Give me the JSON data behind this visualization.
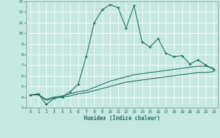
{
  "xlabel": "Humidex (Indice chaleur)",
  "bg_color": "#c5e8e0",
  "line_color": "#1a6e5e",
  "xlim": [
    -0.5,
    23.5
  ],
  "ylim": [
    3,
    13
  ],
  "xticks": [
    0,
    1,
    2,
    3,
    4,
    5,
    6,
    7,
    8,
    9,
    10,
    11,
    12,
    13,
    14,
    15,
    16,
    17,
    18,
    19,
    20,
    21,
    22,
    23
  ],
  "yticks": [
    3,
    4,
    5,
    6,
    7,
    8,
    9,
    10,
    11,
    12,
    13
  ],
  "line1_x": [
    0,
    1,
    2,
    3,
    4,
    5,
    6,
    7,
    8,
    9,
    10,
    11,
    12,
    13,
    14,
    15,
    16,
    17,
    18,
    19,
    20,
    21,
    22,
    23
  ],
  "line1_y": [
    4.2,
    4.3,
    3.3,
    3.9,
    4.0,
    4.5,
    5.2,
    7.8,
    11.0,
    12.2,
    12.7,
    12.4,
    10.5,
    12.6,
    9.2,
    8.7,
    9.5,
    8.1,
    7.8,
    7.9,
    7.1,
    7.5,
    7.0,
    6.6
  ],
  "line2_x": [
    0,
    1,
    2,
    3,
    4,
    5,
    6,
    7,
    8,
    9,
    10,
    11,
    12,
    13,
    14,
    15,
    16,
    17,
    18,
    19,
    20,
    21,
    22,
    23
  ],
  "line2_y": [
    4.2,
    4.2,
    3.8,
    4.0,
    4.1,
    4.3,
    4.5,
    4.6,
    4.9,
    5.2,
    5.5,
    5.7,
    5.9,
    6.1,
    6.2,
    6.3,
    6.4,
    6.5,
    6.6,
    6.7,
    6.8,
    6.9,
    6.9,
    6.7
  ],
  "line3_x": [
    0,
    1,
    2,
    3,
    4,
    5,
    6,
    7,
    8,
    9,
    10,
    11,
    12,
    13,
    14,
    15,
    16,
    17,
    18,
    19,
    20,
    21,
    22,
    23
  ],
  "line3_y": [
    4.2,
    4.2,
    3.7,
    3.9,
    4.0,
    4.1,
    4.3,
    4.4,
    4.6,
    4.8,
    5.0,
    5.2,
    5.4,
    5.5,
    5.6,
    5.7,
    5.8,
    5.9,
    6.0,
    6.1,
    6.2,
    6.3,
    6.3,
    6.4
  ]
}
